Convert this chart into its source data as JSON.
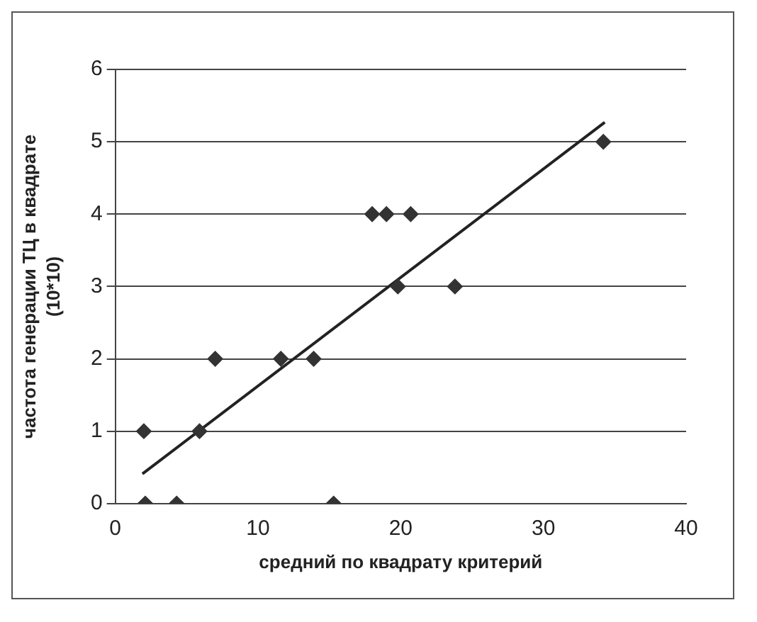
{
  "chart_data": {
    "type": "scatter",
    "xlabel": "средний по квадрату критерий",
    "ylabel": "частота генерации ТЦ в квадрате (10*10)",
    "xlim": [
      0,
      40
    ],
    "xticks": [
      0,
      10,
      20,
      30,
      40
    ],
    "ylim": [
      0,
      6
    ],
    "yticks": [
      0,
      1,
      2,
      3,
      4,
      5,
      6
    ],
    "grid": "y",
    "legend": false,
    "marker": "diamond",
    "series": [
      {
        "color": "#333333",
        "x": [
          2.0,
          2.1,
          4.3,
          5.9,
          7.0,
          11.6,
          13.9,
          15.3,
          18.0,
          19.0,
          20.7,
          19.8,
          23.8,
          34.2
        ],
        "values": [
          1,
          0,
          0,
          1,
          2,
          2,
          2,
          0,
          4,
          4,
          4,
          3,
          3,
          5
        ]
      },
      {
        "type": "line",
        "color": "#222222",
        "marker": "none",
        "x": [
          1.9,
          34.3
        ],
        "values": [
          0.41,
          5.27
        ]
      }
    ]
  }
}
